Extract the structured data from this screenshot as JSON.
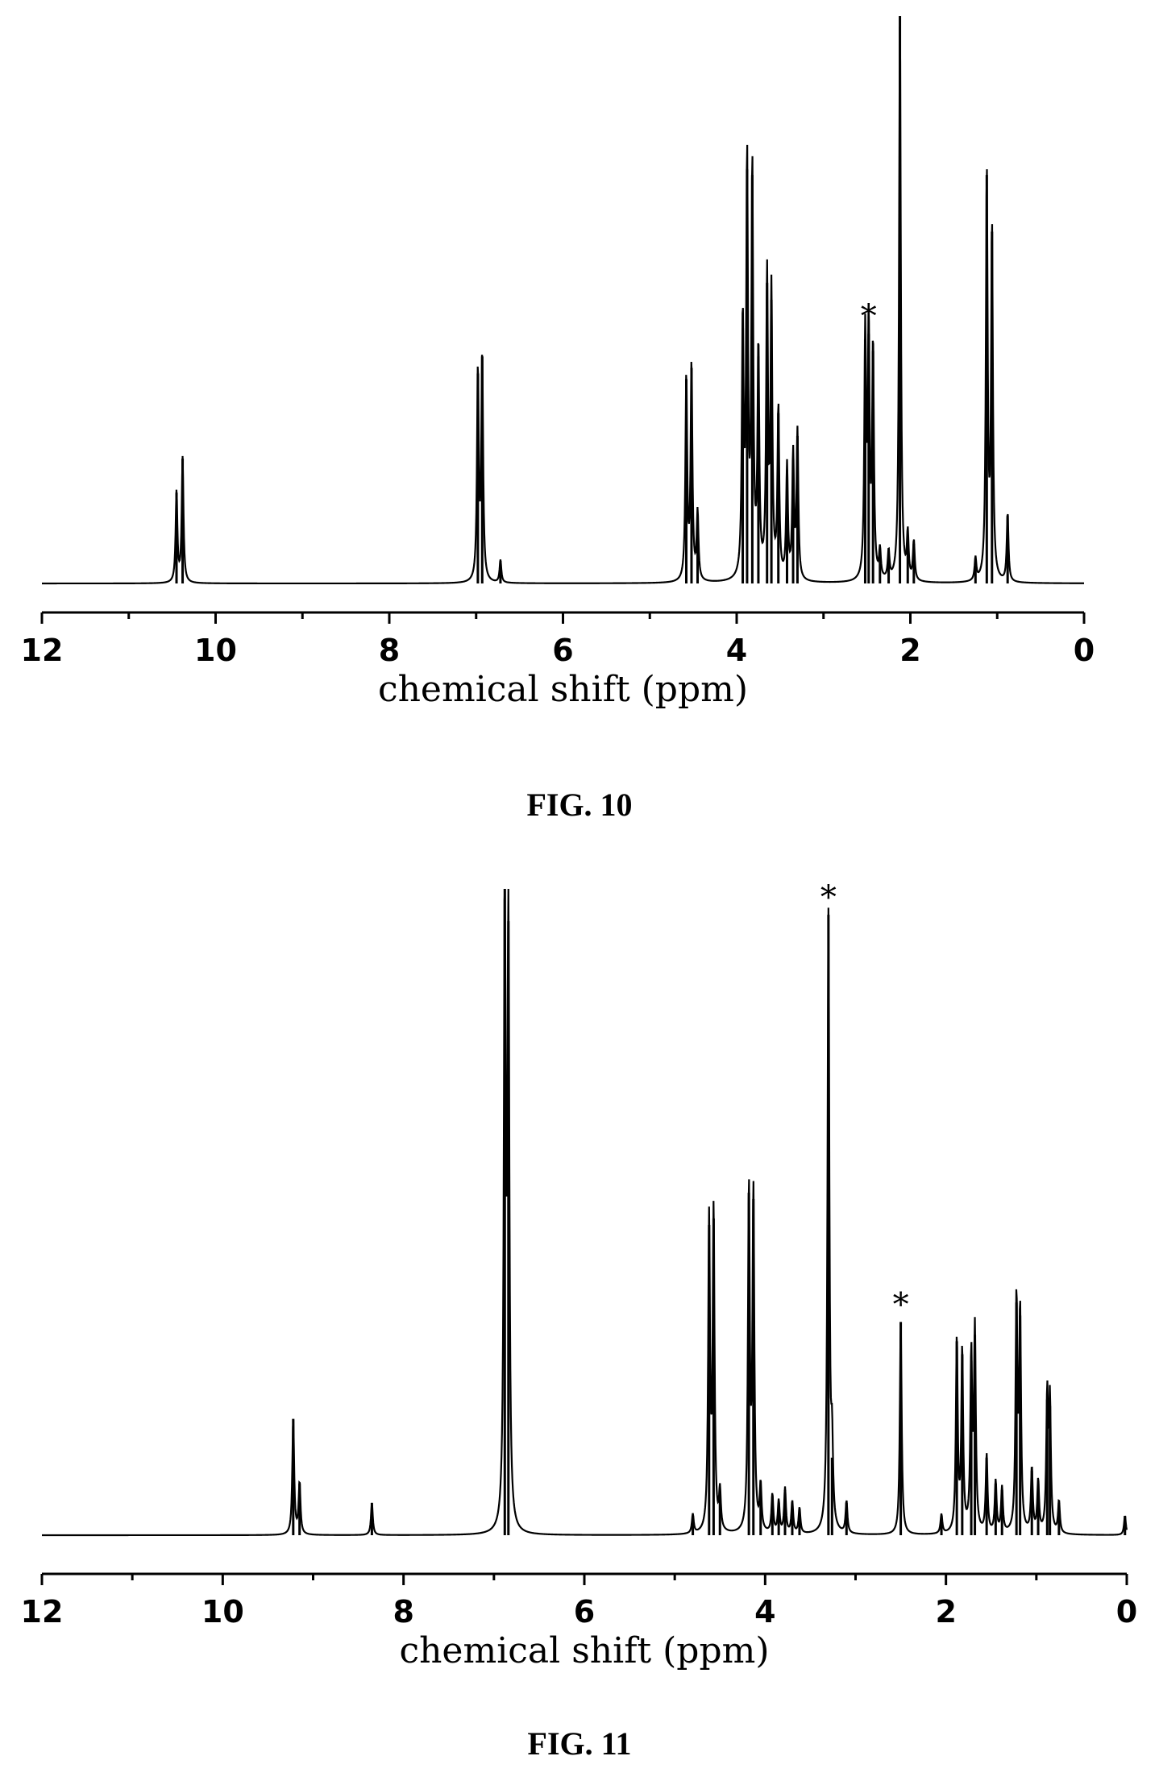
{
  "chart_data": [
    {
      "type": "line",
      "caption": "FIG. 10",
      "xlabel": "chemical shift (ppm)",
      "ylabel": "",
      "xlim": [
        12,
        0
      ],
      "x_reversed": true,
      "ylim": [
        0,
        1.0
      ],
      "grid": false,
      "x_ticks": [
        12,
        10,
        8,
        6,
        4,
        2,
        0
      ],
      "tick_labels": [
        "12",
        "10",
        "8",
        "6",
        "4",
        "2",
        "0"
      ],
      "peaks": [
        {
          "x": 10.45,
          "y": 0.16
        },
        {
          "x": 10.38,
          "y": 0.22
        },
        {
          "x": 6.98,
          "y": 0.37
        },
        {
          "x": 6.93,
          "y": 0.4
        },
        {
          "x": 6.72,
          "y": 0.04
        },
        {
          "x": 4.58,
          "y": 0.36
        },
        {
          "x": 4.52,
          "y": 0.38
        },
        {
          "x": 4.45,
          "y": 0.12
        },
        {
          "x": 3.93,
          "y": 0.45
        },
        {
          "x": 3.88,
          "y": 0.73
        },
        {
          "x": 3.82,
          "y": 0.72
        },
        {
          "x": 3.75,
          "y": 0.4
        },
        {
          "x": 3.65,
          "y": 0.53
        },
        {
          "x": 3.6,
          "y": 0.5
        },
        {
          "x": 3.52,
          "y": 0.3
        },
        {
          "x": 3.42,
          "y": 0.2
        },
        {
          "x": 3.35,
          "y": 0.22
        },
        {
          "x": 3.3,
          "y": 0.26
        },
        {
          "x": 2.52,
          "y": 0.43
        },
        {
          "x": 2.48,
          "y": 0.44
        },
        {
          "x": 2.43,
          "y": 0.41
        },
        {
          "x": 2.35,
          "y": 0.05
        },
        {
          "x": 2.25,
          "y": 0.05
        },
        {
          "x": 2.12,
          "y": 1.0
        },
        {
          "x": 2.03,
          "y": 0.08
        },
        {
          "x": 1.96,
          "y": 0.07
        },
        {
          "x": 1.12,
          "y": 0.72
        },
        {
          "x": 1.06,
          "y": 0.62
        },
        {
          "x": 0.88,
          "y": 0.12
        },
        {
          "x": 1.25,
          "y": 0.04
        }
      ],
      "annotations": [
        {
          "text": "*",
          "x": 2.48
        }
      ]
    },
    {
      "type": "line",
      "caption": "FIG. 11",
      "xlabel": "chemical shift (ppm)",
      "ylabel": "",
      "xlim": [
        12,
        0
      ],
      "x_reversed": true,
      "ylim": [
        0,
        1.0
      ],
      "grid": false,
      "x_ticks": [
        12,
        10,
        8,
        6,
        4,
        2,
        0
      ],
      "tick_labels": [
        "12",
        "10",
        "8",
        "6",
        "4",
        "2",
        "0"
      ],
      "peaks": [
        {
          "x": 9.22,
          "y": 0.18
        },
        {
          "x": 9.15,
          "y": 0.08
        },
        {
          "x": 8.35,
          "y": 0.05
        },
        {
          "x": 6.88,
          "y": 1.0
        },
        {
          "x": 6.84,
          "y": 0.95
        },
        {
          "x": 4.8,
          "y": 0.03
        },
        {
          "x": 4.62,
          "y": 0.48
        },
        {
          "x": 4.57,
          "y": 0.49
        },
        {
          "x": 4.5,
          "y": 0.06
        },
        {
          "x": 4.18,
          "y": 0.53
        },
        {
          "x": 4.13,
          "y": 0.52
        },
        {
          "x": 4.05,
          "y": 0.07
        },
        {
          "x": 3.92,
          "y": 0.06
        },
        {
          "x": 3.85,
          "y": 0.05
        },
        {
          "x": 3.78,
          "y": 0.07
        },
        {
          "x": 3.7,
          "y": 0.05
        },
        {
          "x": 3.62,
          "y": 0.04
        },
        {
          "x": 3.3,
          "y": 0.96
        },
        {
          "x": 3.26,
          "y": 0.12
        },
        {
          "x": 3.1,
          "y": 0.05
        },
        {
          "x": 2.5,
          "y": 0.33
        },
        {
          "x": 2.05,
          "y": 0.03
        },
        {
          "x": 1.88,
          "y": 0.3
        },
        {
          "x": 1.82,
          "y": 0.28
        },
        {
          "x": 1.72,
          "y": 0.27
        },
        {
          "x": 1.68,
          "y": 0.31
        },
        {
          "x": 1.55,
          "y": 0.12
        },
        {
          "x": 1.45,
          "y": 0.08
        },
        {
          "x": 1.38,
          "y": 0.07
        },
        {
          "x": 1.22,
          "y": 0.36
        },
        {
          "x": 1.18,
          "y": 0.34
        },
        {
          "x": 1.05,
          "y": 0.1
        },
        {
          "x": 0.98,
          "y": 0.08
        },
        {
          "x": 0.88,
          "y": 0.21
        },
        {
          "x": 0.85,
          "y": 0.2
        },
        {
          "x": 0.75,
          "y": 0.05
        },
        {
          "x": 0.02,
          "y": 0.03
        }
      ],
      "annotations": [
        {
          "text": "*",
          "x": 3.3
        },
        {
          "text": "*",
          "x": 2.5
        }
      ]
    }
  ]
}
